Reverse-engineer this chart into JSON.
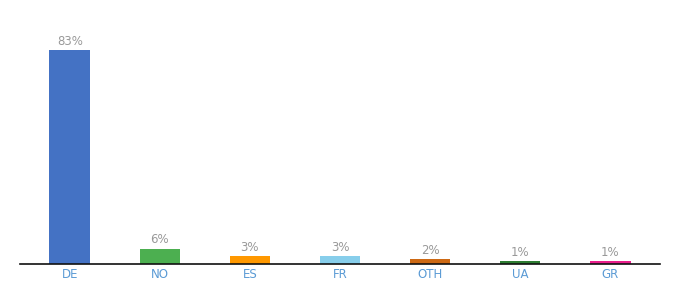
{
  "categories": [
    "DE",
    "NO",
    "ES",
    "FR",
    "OTH",
    "UA",
    "GR"
  ],
  "values": [
    83,
    6,
    3,
    3,
    2,
    1,
    1
  ],
  "bar_colors": [
    "#4472c4",
    "#4caf50",
    "#ff9800",
    "#87ceeb",
    "#cd6914",
    "#2e7d32",
    "#e91e8c"
  ],
  "ylim": [
    0,
    93
  ],
  "background_color": "#ffffff",
  "label_fontsize": 8.5,
  "tick_fontsize": 8.5,
  "bar_width": 0.45,
  "label_color": "#999999",
  "tick_color": "#5b9bd5"
}
